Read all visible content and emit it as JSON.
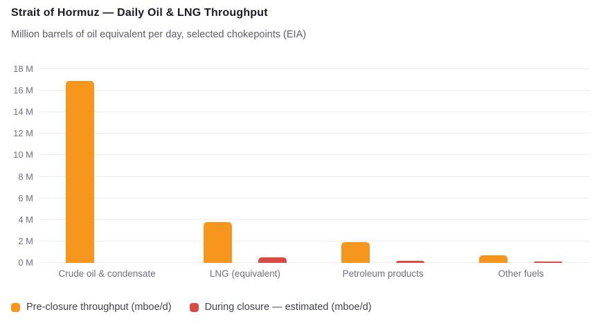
{
  "chart_data": {
    "type": "bar",
    "title": "Strait of Hormuz — Daily Oil & LNG Throughput",
    "subtitle": "Million barrels of oil equivalent per day, selected chokepoints (EIA)",
    "categories": [
      "Crude oil & condensate",
      "LNG (equivalent)",
      "Petroleum products",
      "Other fuels"
    ],
    "series": [
      {
        "name": "Pre-closure throughput (mboe/d)",
        "color": "#F7961D",
        "values": [
          16.9,
          3.8,
          1.9,
          0.7
        ]
      },
      {
        "name": "During closure — estimated (mboe/d)",
        "color": "#DB4B45",
        "values": [
          0,
          0.5,
          0.2,
          0.1
        ]
      }
    ],
    "xlabel": "",
    "ylabel": "",
    "ylim": [
      0,
      18
    ],
    "y_tick_step": 2,
    "y_ticks": [
      "0 M",
      "2 M",
      "4 M",
      "6 M",
      "8 M",
      "10 M",
      "12 M",
      "14 M",
      "16 M",
      "18 M"
    ],
    "grid": true,
    "legend_position": "bottom",
    "colors": {
      "grid": "#ececf1",
      "tick_label": "#71717b",
      "category_label": "#6e6e78",
      "title": "#1a1a24",
      "subtitle": "#5d5d67"
    }
  }
}
